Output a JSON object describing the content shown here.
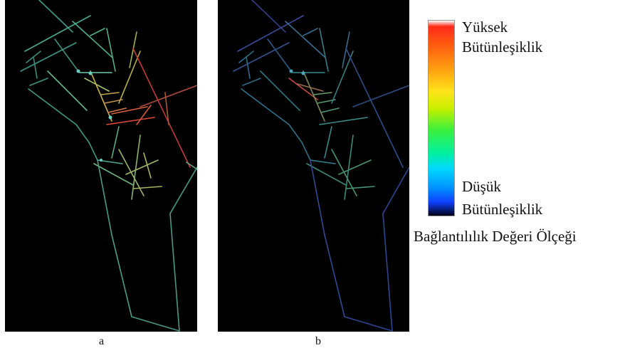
{
  "panels": [
    {
      "label": "a"
    },
    {
      "label": "b"
    }
  ],
  "legend": {
    "high_line1": "Yüksek",
    "high_line2": "Bütünleşiklik",
    "low_line1": "Düşük",
    "low_line2": "Bütünleşiklik",
    "title": "Bağlantılılık Değeri Ölçeği",
    "gradient_colors": [
      "#ffffff",
      "#ff2a1a",
      "#ff9a10",
      "#ffe21a",
      "#3cf03c",
      "#00d8ff",
      "#1040ff",
      "#000018"
    ]
  }
}
